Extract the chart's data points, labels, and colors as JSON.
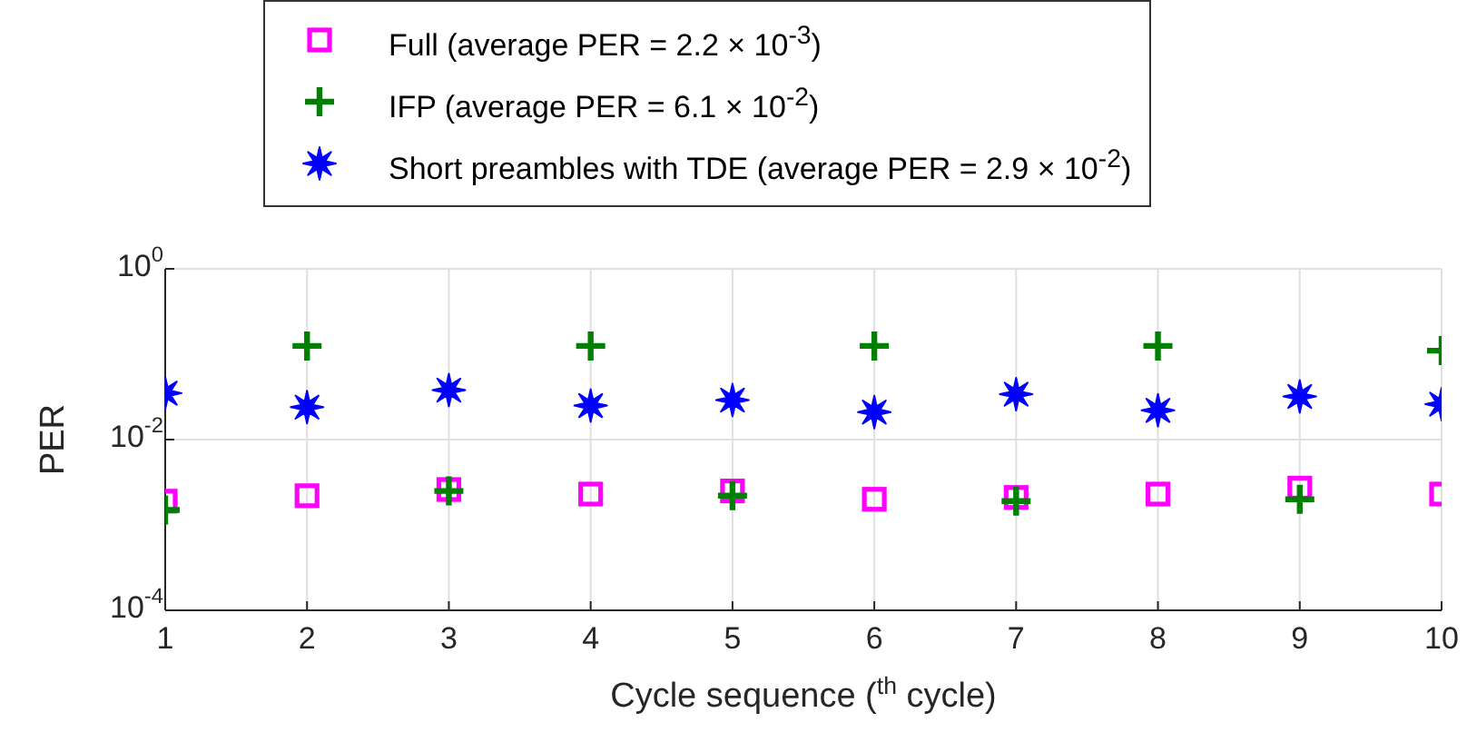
{
  "chart_data": {
    "type": "scatter",
    "x": [
      1,
      2,
      3,
      4,
      5,
      6,
      7,
      8,
      9,
      10
    ],
    "series": [
      {
        "name": "Full (average PER = 2.2 × 10$^{-3}$)",
        "color": "#ff00ff",
        "marker": "square",
        "values": [
          0.0019,
          0.0022,
          0.0026,
          0.0023,
          0.0025,
          0.002,
          0.0021,
          0.0023,
          0.0027,
          0.0023
        ]
      },
      {
        "name": "IFP (average PER = 6.1 × 10$^{-2}$)",
        "color": "#008000",
        "marker": "cross",
        "values": [
          0.0015,
          0.125,
          0.0025,
          0.125,
          0.0022,
          0.125,
          0.0019,
          0.125,
          0.002,
          0.11
        ]
      },
      {
        "name": "Short preambles with TDE (average PER = 2.9 × 10$^{-2}$)",
        "color": "#0000ff",
        "marker": "star",
        "values": [
          0.035,
          0.024,
          0.038,
          0.025,
          0.029,
          0.021,
          0.034,
          0.022,
          0.032,
          0.026
        ]
      }
    ],
    "xlabel": "Cycle sequence ($^{th}$ cycle)",
    "ylabel": "PER",
    "xlim": [
      1,
      10
    ],
    "xticks": [
      1,
      2,
      3,
      4,
      5,
      6,
      7,
      8,
      9,
      10
    ],
    "ylim": [
      0.0001,
      1
    ],
    "yticks": [
      {
        "value": 0.0001,
        "label": "10$^{-4}$"
      },
      {
        "value": 0.01,
        "label": "10$^{-2}$"
      },
      {
        "value": 1,
        "label": "10$^{0}$"
      }
    ],
    "log": true,
    "grid": true,
    "legend": "top"
  }
}
